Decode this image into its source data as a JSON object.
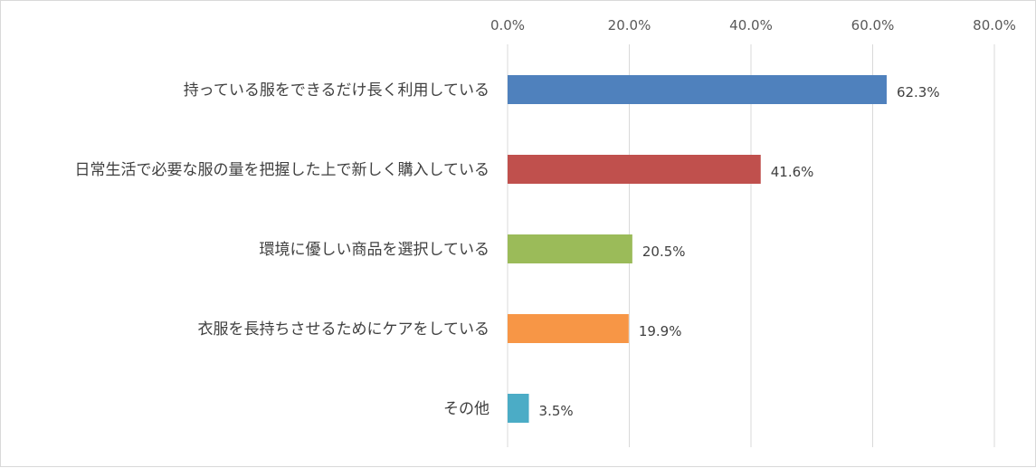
{
  "chart_data": {
    "type": "bar",
    "orientation": "horizontal",
    "categories": [
      "持っている服をできるだけ長く利用している",
      "日常生活で必要な服の量を把握した上で新しく購入している",
      "環境に優しい商品を選択している",
      "衣服を長持ちさせるためにケアをしている",
      "その他"
    ],
    "values": [
      62.3,
      41.6,
      20.5,
      19.9,
      3.5
    ],
    "value_labels": [
      "62.3%",
      "41.6%",
      "20.5%",
      "19.9%",
      "3.5%"
    ],
    "bar_colors": [
      "#4f81bd",
      "#c0504d",
      "#9bbb59",
      "#f79646",
      "#4bacc6"
    ],
    "xlim": [
      0,
      80
    ],
    "x_ticks": [
      0,
      20,
      40,
      60,
      80
    ],
    "x_tick_labels": [
      "0.0%",
      "20.0%",
      "40.0%",
      "60.0%",
      "80.0%"
    ],
    "x_axis_position": "top",
    "grid": "vertical",
    "legend": "none"
  }
}
